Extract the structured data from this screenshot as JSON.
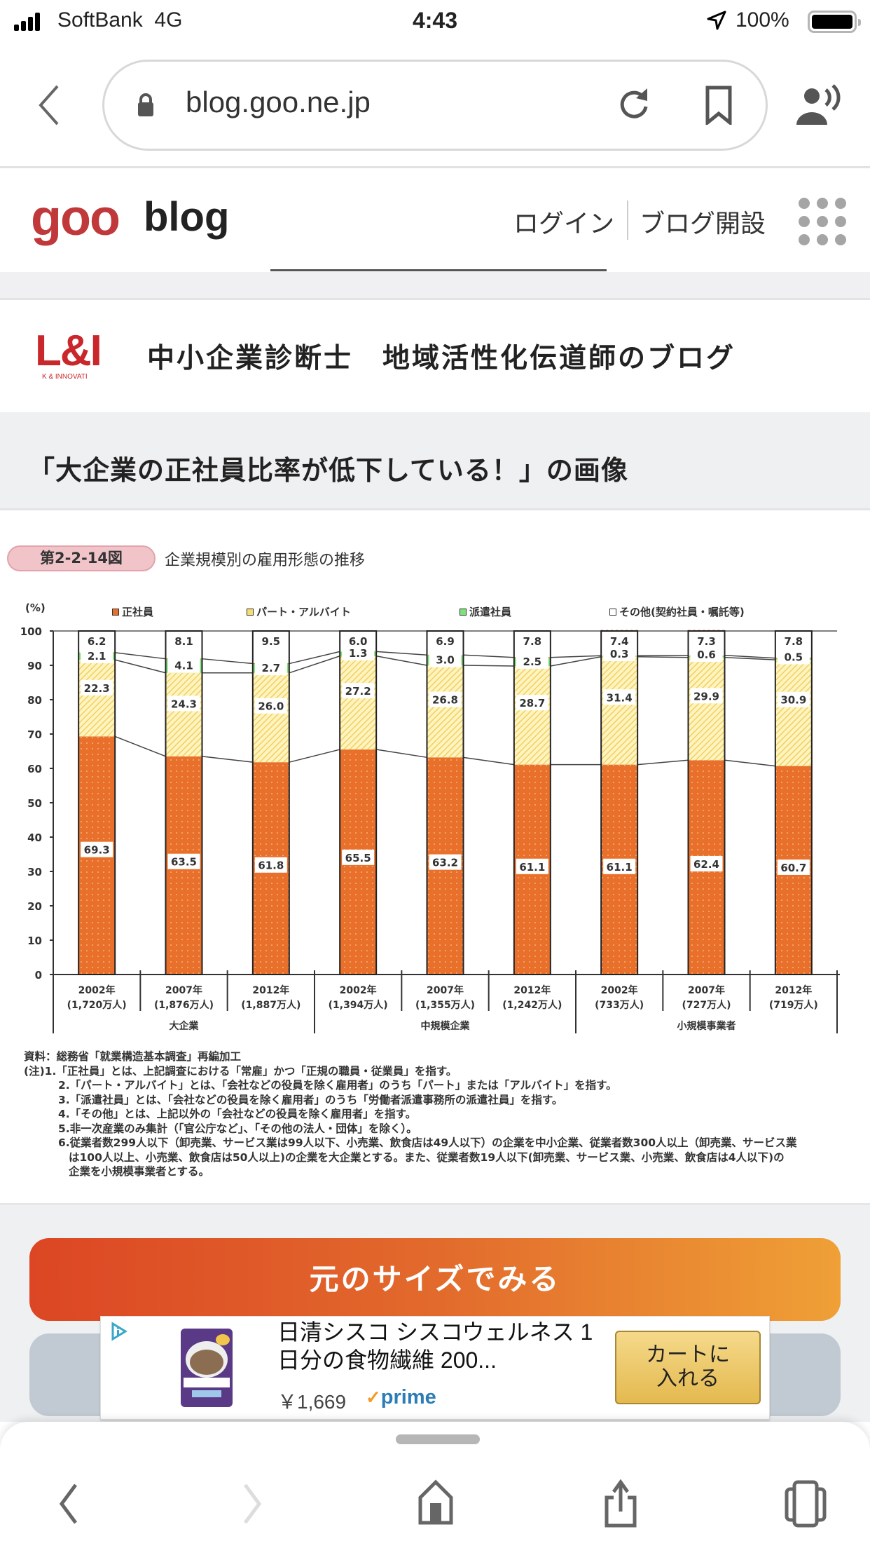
{
  "status_bar": {
    "carrier": "SoftBank",
    "network": "4G",
    "time": "4:43",
    "battery": "100%"
  },
  "browser": {
    "url": "blog.goo.ne.jp"
  },
  "goo_header": {
    "logo": "goo",
    "logo_suffix": "blog",
    "login": "ログイン",
    "signup": "ブログ開設"
  },
  "blog": {
    "logo_text": "L&I",
    "logo_sub": "K & INNOVATI",
    "title": "中小企業診断士　地域活性化伝道師のブログ"
  },
  "page_heading": "「大企業の正社員比率が低下している！」の画像",
  "figure": {
    "tag": "第2-2-14図",
    "title": "企業規模別の雇用形態の推移",
    "notes": [
      "資料：総務省「就業構造基本調査」再編加工",
      "(注)1.「正社員」とは、上記調査における「常雇」かつ「正規の職員・従業員」を指す。",
      "2.「パート・アルバイト」とは、「会社などの役員を除く雇用者」のうち「パート」または「アルバイト」を指す。",
      "3.「派遣社員」とは、「会社などの役員を除く雇用者」のうち「労働者派遣事務所の派遣社員」を指す。",
      "4.「その他」とは、上記以外の「会社などの役員を除く雇用者」を指す。",
      "5.非一次産業のみ集計（「官公庁など」、「その他の法人・団体」を除く）。",
      "6.従業者数299人以下（卸売業、サービス業は99人以下、小売業、飲食店は49人以下）の企業を中小企業、従業者数300人以上（卸売業、サービス業",
      "は100人以上、小売業、飲食店は50人以上)の企業を大企業とする。また、従業者数19人以下(卸売業、サービス業、小売業、飲食店は4人以下)の",
      "企業を小規模事業者とする。"
    ]
  },
  "chart_data": {
    "type": "bar",
    "stacked": true,
    "ylabel": "(%)",
    "ylim": [
      0,
      100
    ],
    "yticks": [
      "0",
      "10",
      "20",
      "30",
      "40",
      "50",
      "60",
      "70",
      "80",
      "90",
      "100"
    ],
    "categories": [
      "2002年",
      "2007年",
      "2012年",
      "2002年",
      "2007年",
      "2012年",
      "2002年",
      "2007年",
      "2012年"
    ],
    "category_sublabels": [
      "(1,720万人)",
      "(1,876万人)",
      "(1,887万人)",
      "(1,394万人)",
      "(1,355万人)",
      "(1,242万人)",
      "(733万人)",
      "(727万人)",
      "(719万人)"
    ],
    "groups": [
      {
        "label": "大企業",
        "span": 3
      },
      {
        "label": "中規模企業",
        "span": 3
      },
      {
        "label": "小規模事業者",
        "span": 3
      }
    ],
    "series": [
      {
        "name": "正社員",
        "color": "#e8702a",
        "values": [
          69.3,
          63.5,
          61.8,
          65.5,
          63.2,
          61.1,
          61.1,
          62.4,
          60.7
        ],
        "labels": [
          "69.3",
          "63.5",
          "61.8",
          "65.5",
          "63.2",
          "61.1",
          "61.1",
          "62.4",
          "60.7"
        ]
      },
      {
        "name": "パート・アルバイト",
        "color": "#f7dc6f",
        "values": [
          22.3,
          24.3,
          26.0,
          27.2,
          26.8,
          28.7,
          31.4,
          29.9,
          30.9
        ],
        "labels": [
          "22.3",
          "24.3",
          "26.0",
          "27.2",
          "26.8",
          "28.7",
          "31.4",
          "29.9",
          "30.9"
        ]
      },
      {
        "name": "派遣社員",
        "color": "#7ee27a",
        "values": [
          2.1,
          4.1,
          2.7,
          1.3,
          3.0,
          2.5,
          0.3,
          0.6,
          0.5
        ],
        "labels": [
          "2.1",
          "4.1",
          "2.7",
          "1.3",
          "3.0",
          "2.5",
          "0.3",
          "0.6",
          "0.5"
        ]
      },
      {
        "name": "その他(契約社員・嘱託等)",
        "color": "#ffffff",
        "values": [
          6.2,
          8.1,
          9.5,
          6.0,
          6.9,
          7.8,
          7.4,
          7.3,
          7.8
        ],
        "labels": [
          "6.2",
          "8.1",
          "9.5",
          "6.0",
          "6.9",
          "7.8",
          "7.4",
          "7.3",
          "7.8"
        ]
      }
    ],
    "legend_position": "top"
  },
  "actions": {
    "view_original": "元のサイズでみる"
  },
  "ad": {
    "title": "日清シスコ シスコウェルネス 1日分の食物繊維 200...",
    "price": "￥1,669",
    "prime": "prime",
    "cart_line1": "カートに",
    "cart_line2": "入れる"
  },
  "colors": {
    "goo_red": "#c0383a",
    "button_start": "#dc4624",
    "button_end": "#efa036"
  }
}
